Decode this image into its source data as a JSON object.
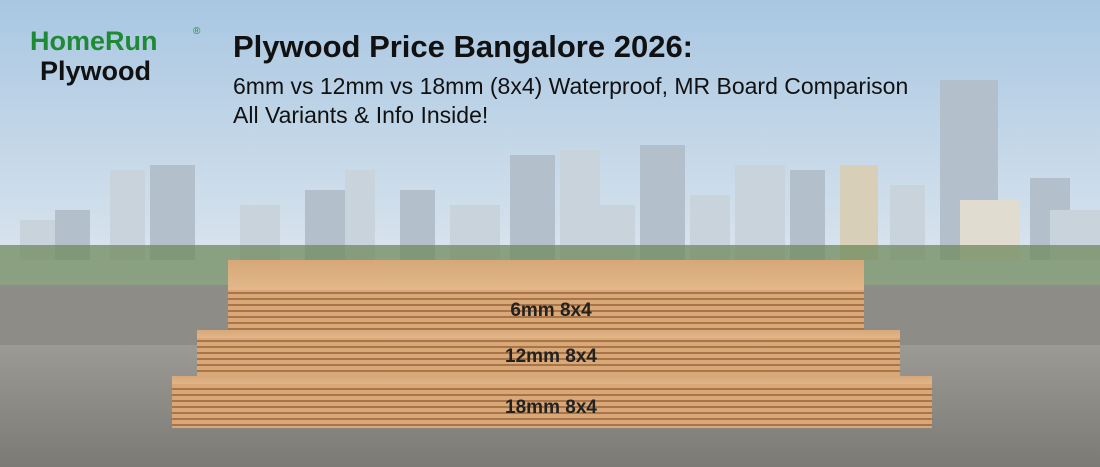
{
  "logo": {
    "brand": "HomeRun",
    "registered": "®",
    "product": "Plywood"
  },
  "header": {
    "title": "Plywood Price Bangalore 2026:",
    "subtitle_lines": [
      "6mm vs 12mm vs 18mm (8x4) Waterproof, MR Board Comparison",
      "All Variants & Info Inside!"
    ]
  },
  "boards": [
    {
      "label": "6mm 8x4"
    },
    {
      "label": "12mm 8x4"
    },
    {
      "label": "18mm 8x4"
    }
  ]
}
